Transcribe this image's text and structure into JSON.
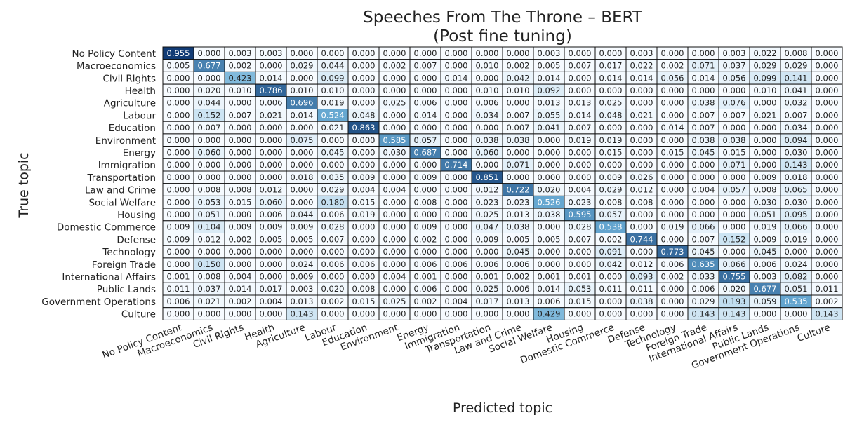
{
  "chart_data": {
    "type": "heatmap",
    "title": "Speeches From The Throne – BERT",
    "subtitle": "(Post fine tuning)",
    "xlabel": "Predicted topic",
    "ylabel": "True topic",
    "categories": [
      "No Policy Content",
      "Macroeconomics",
      "Civil Rights",
      "Health",
      "Agriculture",
      "Labour",
      "Education",
      "Environment",
      "Energy",
      "Immigration",
      "Transportation",
      "Law and Crime",
      "Social Welfare",
      "Housing",
      "Domestic Commerce",
      "Defense",
      "Technology",
      "Foreign Trade",
      "International Affairs",
      "Public Lands",
      "Government Operations",
      "Culture"
    ],
    "colormap": {
      "low": "#f7fbff",
      "mid": "#6baed6",
      "high": "#08306b"
    },
    "values": [
      [
        "0.955",
        "0.000",
        "0.003",
        "0.003",
        "0.000",
        "0.000",
        "0.000",
        "0.000",
        "0.000",
        "0.000",
        "0.000",
        "0.000",
        "0.003",
        "0.000",
        "0.000",
        "0.003",
        "0.000",
        "0.000",
        "0.003",
        "0.022",
        "0.008",
        "0.000"
      ],
      [
        "0.005",
        "0.677",
        "0.002",
        "0.000",
        "0.029",
        "0.044",
        "0.000",
        "0.002",
        "0.007",
        "0.000",
        "0.010",
        "0.002",
        "0.005",
        "0.007",
        "0.017",
        "0.022",
        "0.002",
        "0.071",
        "0.037",
        "0.029",
        "0.029",
        "0.000"
      ],
      [
        "0.000",
        "0.000",
        "0.423",
        "0.014",
        "0.000",
        "0.099",
        "0.000",
        "0.000",
        "0.000",
        "0.014",
        "0.000",
        "0.042",
        "0.014",
        "0.000",
        "0.014",
        "0.014",
        "0.056",
        "0.014",
        "0.056",
        "0.099",
        "0.141",
        "0.000"
      ],
      [
        "0.000",
        "0.020",
        "0.010",
        "0.786",
        "0.010",
        "0.010",
        "0.000",
        "0.000",
        "0.000",
        "0.000",
        "0.010",
        "0.010",
        "0.092",
        "0.000",
        "0.000",
        "0.000",
        "0.000",
        "0.000",
        "0.000",
        "0.010",
        "0.041",
        "0.000"
      ],
      [
        "0.000",
        "0.044",
        "0.000",
        "0.006",
        "0.696",
        "0.019",
        "0.000",
        "0.025",
        "0.006",
        "0.000",
        "0.006",
        "0.000",
        "0.013",
        "0.013",
        "0.025",
        "0.000",
        "0.000",
        "0.038",
        "0.076",
        "0.000",
        "0.032",
        "0.000"
      ],
      [
        "0.000",
        "0.152",
        "0.007",
        "0.021",
        "0.014",
        "0.524",
        "0.048",
        "0.000",
        "0.014",
        "0.000",
        "0.034",
        "0.007",
        "0.055",
        "0.014",
        "0.048",
        "0.021",
        "0.000",
        "0.007",
        "0.007",
        "0.021",
        "0.007",
        "0.000"
      ],
      [
        "0.000",
        "0.007",
        "0.000",
        "0.000",
        "0.000",
        "0.021",
        "0.863",
        "0.000",
        "0.000",
        "0.000",
        "0.000",
        "0.007",
        "0.041",
        "0.007",
        "0.000",
        "0.000",
        "0.014",
        "0.007",
        "0.000",
        "0.000",
        "0.034",
        "0.000"
      ],
      [
        "0.000",
        "0.000",
        "0.000",
        "0.000",
        "0.075",
        "0.000",
        "0.000",
        "0.585",
        "0.057",
        "0.000",
        "0.038",
        "0.038",
        "0.000",
        "0.019",
        "0.019",
        "0.000",
        "0.000",
        "0.038",
        "0.038",
        "0.000",
        "0.094",
        "0.000"
      ],
      [
        "0.000",
        "0.060",
        "0.000",
        "0.000",
        "0.000",
        "0.045",
        "0.000",
        "0.030",
        "0.687",
        "0.000",
        "0.060",
        "0.000",
        "0.000",
        "0.000",
        "0.015",
        "0.000",
        "0.015",
        "0.045",
        "0.015",
        "0.000",
        "0.030",
        "0.000"
      ],
      [
        "0.000",
        "0.000",
        "0.000",
        "0.000",
        "0.000",
        "0.000",
        "0.000",
        "0.000",
        "0.000",
        "0.714",
        "0.000",
        "0.071",
        "0.000",
        "0.000",
        "0.000",
        "0.000",
        "0.000",
        "0.000",
        "0.071",
        "0.000",
        "0.143",
        "0.000"
      ],
      [
        "0.000",
        "0.000",
        "0.000",
        "0.000",
        "0.018",
        "0.035",
        "0.009",
        "0.000",
        "0.009",
        "0.000",
        "0.851",
        "0.000",
        "0.000",
        "0.000",
        "0.009",
        "0.026",
        "0.000",
        "0.000",
        "0.000",
        "0.009",
        "0.018",
        "0.000"
      ],
      [
        "0.000",
        "0.008",
        "0.008",
        "0.012",
        "0.000",
        "0.029",
        "0.004",
        "0.004",
        "0.000",
        "0.000",
        "0.012",
        "0.722",
        "0.020",
        "0.004",
        "0.029",
        "0.012",
        "0.000",
        "0.004",
        "0.057",
        "0.008",
        "0.065",
        "0.000"
      ],
      [
        "0.000",
        "0.053",
        "0.015",
        "0.060",
        "0.000",
        "0.180",
        "0.015",
        "0.000",
        "0.008",
        "0.000",
        "0.023",
        "0.023",
        "0.526",
        "0.023",
        "0.008",
        "0.008",
        "0.000",
        "0.000",
        "0.000",
        "0.030",
        "0.030",
        "0.000"
      ],
      [
        "0.000",
        "0.051",
        "0.000",
        "0.006",
        "0.044",
        "0.006",
        "0.019",
        "0.000",
        "0.000",
        "0.000",
        "0.025",
        "0.013",
        "0.038",
        "0.595",
        "0.057",
        "0.000",
        "0.000",
        "0.000",
        "0.000",
        "0.051",
        "0.095",
        "0.000"
      ],
      [
        "0.009",
        "0.104",
        "0.009",
        "0.009",
        "0.009",
        "0.028",
        "0.000",
        "0.000",
        "0.009",
        "0.000",
        "0.047",
        "0.038",
        "0.000",
        "0.028",
        "0.538",
        "0.000",
        "0.019",
        "0.066",
        "0.000",
        "0.019",
        "0.066",
        "0.000"
      ],
      [
        "0.009",
        "0.012",
        "0.002",
        "0.005",
        "0.005",
        "0.007",
        "0.000",
        "0.000",
        "0.002",
        "0.000",
        "0.009",
        "0.005",
        "0.005",
        "0.007",
        "0.002",
        "0.744",
        "0.000",
        "0.007",
        "0.152",
        "0.009",
        "0.019",
        "0.000"
      ],
      [
        "0.000",
        "0.000",
        "0.000",
        "0.000",
        "0.000",
        "0.000",
        "0.000",
        "0.000",
        "0.000",
        "0.000",
        "0.000",
        "0.045",
        "0.000",
        "0.000",
        "0.091",
        "0.000",
        "0.773",
        "0.045",
        "0.000",
        "0.045",
        "0.000",
        "0.000"
      ],
      [
        "0.000",
        "0.150",
        "0.000",
        "0.000",
        "0.024",
        "0.006",
        "0.006",
        "0.000",
        "0.006",
        "0.006",
        "0.006",
        "0.006",
        "0.000",
        "0.000",
        "0.042",
        "0.012",
        "0.006",
        "0.635",
        "0.066",
        "0.006",
        "0.024",
        "0.000"
      ],
      [
        "0.001",
        "0.008",
        "0.004",
        "0.000",
        "0.009",
        "0.000",
        "0.000",
        "0.004",
        "0.001",
        "0.000",
        "0.001",
        "0.002",
        "0.001",
        "0.001",
        "0.000",
        "0.093",
        "0.002",
        "0.033",
        "0.755",
        "0.003",
        "0.082",
        "0.000"
      ],
      [
        "0.011",
        "0.037",
        "0.014",
        "0.017",
        "0.003",
        "0.020",
        "0.008",
        "0.000",
        "0.006",
        "0.000",
        "0.025",
        "0.006",
        "0.014",
        "0.053",
        "0.011",
        "0.011",
        "0.000",
        "0.006",
        "0.020",
        "0.677",
        "0.051",
        "0.011"
      ],
      [
        "0.006",
        "0.021",
        "0.002",
        "0.004",
        "0.013",
        "0.002",
        "0.015",
        "0.025",
        "0.002",
        "0.004",
        "0.017",
        "0.013",
        "0.006",
        "0.015",
        "0.000",
        "0.038",
        "0.000",
        "0.029",
        "0.193",
        "0.059",
        "0.535",
        "0.002"
      ],
      [
        "0.000",
        "0.000",
        "0.000",
        "0.000",
        "0.143",
        "0.000",
        "0.000",
        "0.000",
        "0.000",
        "0.000",
        "0.000",
        "0.000",
        "0.429",
        "0.000",
        "0.000",
        "0.000",
        "0.000",
        "0.143",
        "0.143",
        "0.000",
        "0.000",
        "0.143"
      ]
    ]
  }
}
